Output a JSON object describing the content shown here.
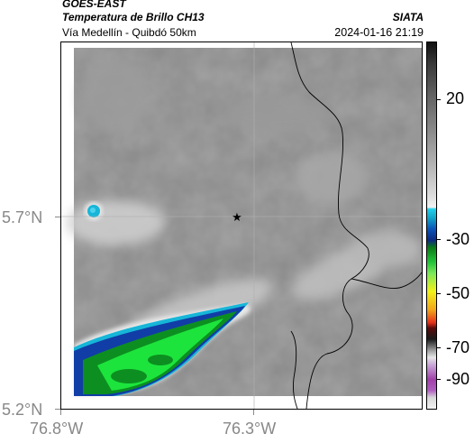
{
  "header": {
    "satellite": "GOES-EAST",
    "product": "Temperatura de Brillo CH13",
    "route": "Vía Medellín - Quibdó 50km",
    "agency": "SIATA",
    "timestamp": "2024-01-16 21:19"
  },
  "map": {
    "lat_ticks": [
      "5.7°N",
      "5.2°N"
    ],
    "lon_ticks": [
      "76.8°W",
      "76.3°W"
    ],
    "marker_icon": "star-icon",
    "colors": {
      "cloud_high": "#c8c8c8",
      "cloud_base": "#858585",
      "cyan": "#17b6d8",
      "blue": "#113da6",
      "green_dark": "#0c8f20",
      "green_bright": "#1ce43c",
      "border": "#000000"
    }
  },
  "colorbar": {
    "ticks": [
      "20",
      "-30",
      "-50",
      "-70",
      "-90"
    ]
  }
}
